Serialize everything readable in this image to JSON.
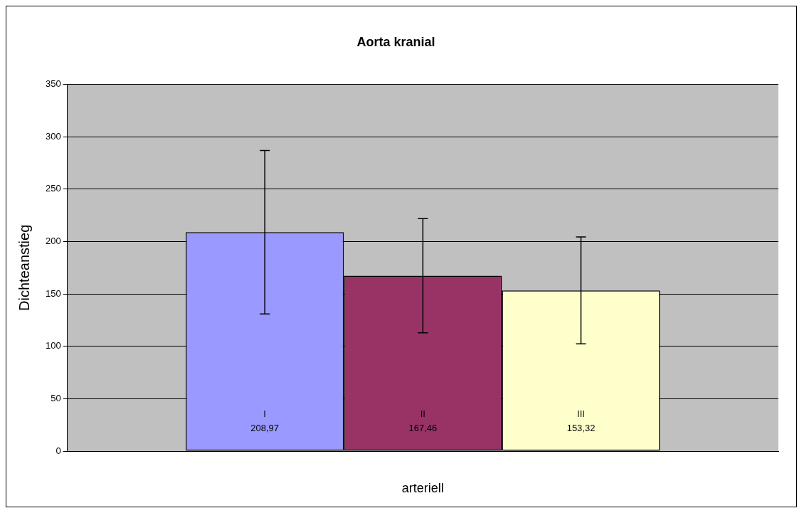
{
  "chart_data": {
    "type": "bar",
    "title": "Aorta kranial",
    "xlabel": "arteriell",
    "ylabel": "Dichteanstieg",
    "categories": [
      null
    ],
    "series": [
      {
        "name": "I",
        "color": "#9999ff",
        "values": [
          208.97
        ],
        "errors": [
          78
        ],
        "value_labels": [
          "208,97"
        ]
      },
      {
        "name": "II",
        "color": "#993366",
        "values": [
          167.46
        ],
        "errors": [
          54.5
        ],
        "value_labels": [
          "167,46"
        ]
      },
      {
        "name": "III",
        "color": "#ffffcc",
        "values": [
          153.32
        ],
        "errors": [
          51
        ],
        "value_labels": [
          "153,32"
        ]
      }
    ],
    "ylim": [
      0,
      350
    ],
    "yticks": [
      0,
      50,
      100,
      150,
      200,
      250,
      300,
      350
    ],
    "grid": "y",
    "legend": false
  }
}
